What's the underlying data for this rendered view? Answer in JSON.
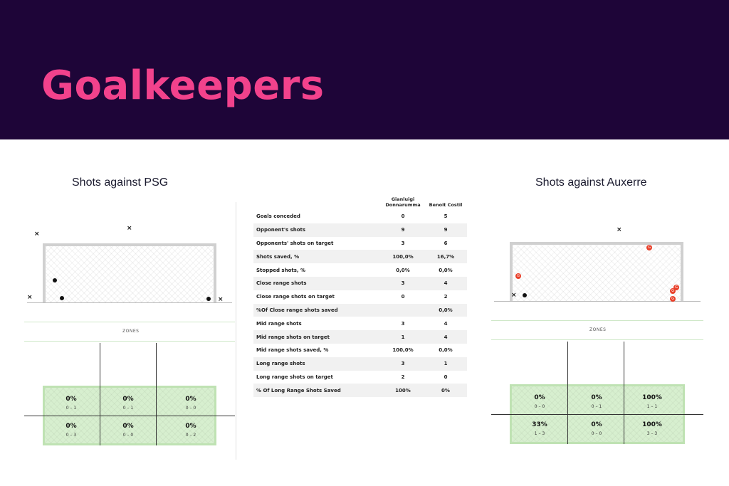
{
  "header": {
    "title": "Goalkeepers"
  },
  "left": {
    "title": "Shots against PSG",
    "zones_label": "ZONES",
    "zones": [
      {
        "pct": "0%",
        "frac": "0 – 1"
      },
      {
        "pct": "0%",
        "frac": "0 – 1"
      },
      {
        "pct": "0%",
        "frac": "0 – 0"
      },
      {
        "pct": "0%",
        "frac": "0 – 3"
      },
      {
        "pct": "0%",
        "frac": "0 – 0"
      },
      {
        "pct": "0%",
        "frac": "0 – 2"
      }
    ]
  },
  "right": {
    "title": "Shots against  Auxerre",
    "zones_label": "ZONES",
    "zones": [
      {
        "pct": "0%",
        "frac": "0 – 0"
      },
      {
        "pct": "0%",
        "frac": "0 – 1"
      },
      {
        "pct": "100%",
        "frac": "1 – 1"
      },
      {
        "pct": "33%",
        "frac": "1 – 3"
      },
      {
        "pct": "0%",
        "frac": "0 – 0"
      },
      {
        "pct": "100%",
        "frac": "3 – 3"
      }
    ]
  },
  "table": {
    "col1": "Gianluigi\nDonnarumma",
    "col2": "Benoit Costil",
    "rows": [
      {
        "label": "Goals conceded",
        "a": "0",
        "b": "5"
      },
      {
        "label": "Opponent's shots",
        "a": "9",
        "b": "9"
      },
      {
        "label": "Opponents'  shots  on target",
        "a": "3",
        "b": "6"
      },
      {
        "label": "Shots saved, %",
        "a": "100,0%",
        "b": "16,7%"
      },
      {
        "label": "Stopped shots, %",
        "a": "0,0%",
        "b": "0,0%"
      },
      {
        "label": "Close range shots",
        "a": "3",
        "b": "4"
      },
      {
        "label": "Close range shots on target",
        "a": "0",
        "b": "2"
      },
      {
        "label": "%Of Close range shots saved",
        "a": "",
        "b": "0,0%"
      },
      {
        "label": "Mid range shots",
        "a": "3",
        "b": "4"
      },
      {
        "label": "Mid range shots on target",
        "a": "1",
        "b": "4"
      },
      {
        "label": "Mid range shots saved, %",
        "a": "100,0%",
        "b": "0,0%"
      },
      {
        "label": "Long range shots",
        "a": "3",
        "b": "1"
      },
      {
        "label": "Long range shots on target",
        "a": "2",
        "b": "0"
      },
      {
        "label": "% Of Long Range Shots Saved",
        "a": "100%",
        "b": "0%"
      }
    ]
  },
  "marker_labels": {
    "goal": "G"
  }
}
